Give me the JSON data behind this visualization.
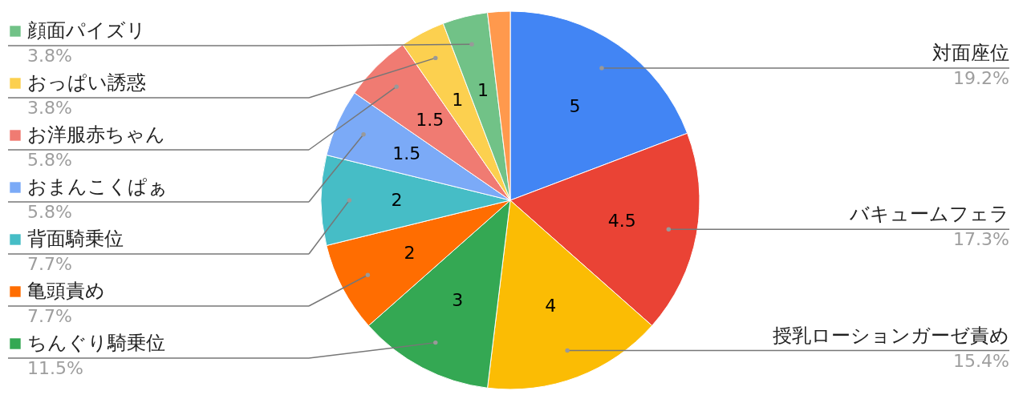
{
  "chart_data": {
    "type": "pie",
    "categories": [
      "対面座位",
      "バキュームフェラ",
      "授乳ローションガーゼ責め",
      "ちんぐり騎乗位",
      "亀頭責め",
      "背面騎乗位",
      "おまんこくぱぁ",
      "お洋服赤ちゃん",
      "おっぱい誘惑",
      "顔面パイズリ",
      null
    ],
    "values": [
      5,
      4.5,
      4,
      3,
      2,
      2,
      1.5,
      1.5,
      1,
      1,
      0.5
    ],
    "colors": [
      "#4285f4",
      "#ea4335",
      "#fbbc04",
      "#34a853",
      "#ff6d01",
      "#46bdc6",
      "#7baaf7",
      "#f07b72",
      "#fcd04f",
      "#71c287",
      "#ff994d"
    ],
    "value_labels": [
      "5",
      "4.5",
      "4",
      "3",
      "2",
      "2",
      "1.5",
      "1.5",
      "1",
      "1",
      null
    ],
    "annotations": [
      "19.2%",
      "17.3%",
      "15.4%",
      "11.5%",
      "7.7%",
      "7.7%",
      "5.8%",
      "5.8%",
      "3.8%",
      "3.8%"
    ],
    "legend": "left"
  }
}
